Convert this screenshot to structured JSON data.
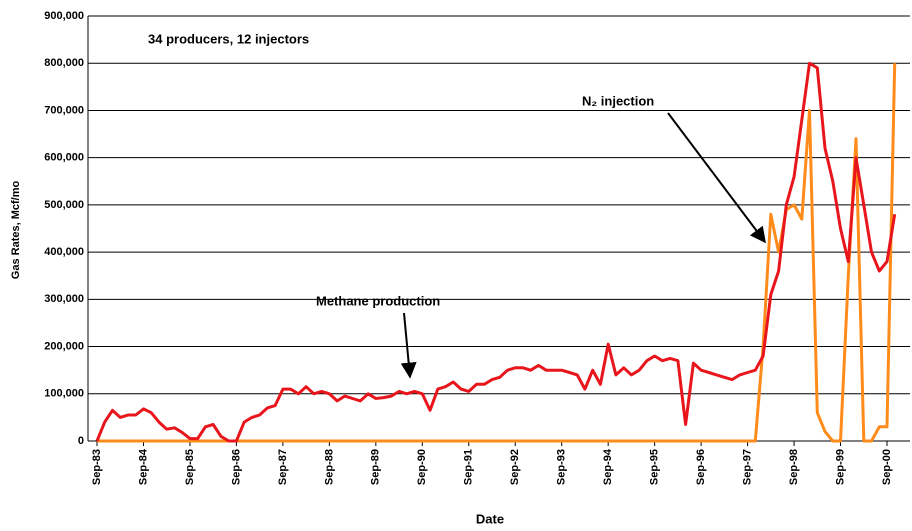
{
  "chart_data": {
    "type": "line",
    "annotations": [
      "34 producers, 12 injectors",
      "N₂ injection",
      "Methane production"
    ],
    "y_label": "Gas Rates, Mcf/mo",
    "x_label": "Date",
    "categories": [
      "Sep-83",
      null,
      null,
      null,
      null,
      null,
      "Sep-84",
      null,
      null,
      null,
      null,
      null,
      "Sep-85",
      null,
      null,
      null,
      null,
      null,
      "Sep-86",
      null,
      null,
      null,
      null,
      null,
      "Sep-87",
      null,
      null,
      null,
      null,
      null,
      "Sep-88",
      null,
      null,
      null,
      null,
      null,
      "Sep-89",
      null,
      null,
      null,
      null,
      null,
      "Sep-90",
      null,
      null,
      null,
      null,
      null,
      "Sep-91",
      null,
      null,
      null,
      null,
      null,
      "Sep-92",
      null,
      null,
      null,
      null,
      null,
      "Sep-93",
      null,
      null,
      null,
      null,
      null,
      "Sep-94",
      null,
      null,
      null,
      null,
      null,
      "Sep-95",
      null,
      null,
      null,
      null,
      null,
      "Sep-96",
      null,
      null,
      null,
      null,
      null,
      "Sep-97",
      null,
      null,
      null,
      null,
      null,
      "Sep-98",
      null,
      null,
      null,
      null,
      null,
      "Sep-99",
      null,
      null,
      null,
      null,
      null,
      "Sep-00",
      null
    ],
    "series": [
      {
        "name": "Methane production",
        "color": "#e8161c",
        "values": [
          0,
          40000,
          65000,
          50000,
          55000,
          55000,
          68000,
          60000,
          40000,
          25000,
          28000,
          18000,
          5000,
          5000,
          30000,
          35000,
          10000,
          0,
          0,
          40000,
          50000,
          55000,
          70000,
          75000,
          110000,
          110000,
          100000,
          115000,
          100000,
          105000,
          100000,
          85000,
          95000,
          90000,
          85000,
          100000,
          90000,
          92000,
          95000,
          105000,
          100000,
          105000,
          100000,
          65000,
          110000,
          115000,
          125000,
          110000,
          105000,
          120000,
          120000,
          130000,
          135000,
          150000,
          155000,
          155000,
          150000,
          160000,
          150000,
          150000,
          150000,
          145000,
          140000,
          110000,
          150000,
          120000,
          205000,
          140000,
          155000,
          140000,
          150000,
          170000,
          180000,
          170000,
          175000,
          170000,
          35000,
          165000,
          150000,
          145000,
          140000,
          135000,
          130000,
          140000,
          145000,
          150000,
          180000,
          310000,
          360000,
          500000,
          560000,
          680000,
          800000,
          790000,
          620000,
          550000,
          450000,
          380000,
          600000,
          500000,
          400000,
          360000,
          380000,
          480000
        ]
      },
      {
        "name": "N₂ injection",
        "color": "#ff8c1a",
        "values": [
          0,
          0,
          0,
          0,
          0,
          0,
          0,
          0,
          0,
          0,
          0,
          0,
          0,
          0,
          0,
          0,
          0,
          0,
          0,
          0,
          0,
          0,
          0,
          0,
          0,
          0,
          0,
          0,
          0,
          0,
          0,
          0,
          0,
          0,
          0,
          0,
          0,
          0,
          0,
          0,
          0,
          0,
          0,
          0,
          0,
          0,
          0,
          0,
          0,
          0,
          0,
          0,
          0,
          0,
          0,
          0,
          0,
          0,
          0,
          0,
          0,
          0,
          0,
          0,
          0,
          0,
          0,
          0,
          0,
          0,
          0,
          0,
          0,
          0,
          0,
          0,
          0,
          0,
          0,
          0,
          0,
          0,
          0,
          0,
          0,
          0,
          200000,
          480000,
          400000,
          490000,
          500000,
          470000,
          700000,
          60000,
          20000,
          0,
          0,
          350000,
          640000,
          0,
          0,
          30000,
          30000,
          800000
        ]
      }
    ],
    "ylim": [
      0,
      900000
    ],
    "yticks": [
      0,
      {
        "value": 100000,
        "label": "100,000"
      },
      {
        "value": 200000,
        "label": "200,000"
      },
      {
        "value": 300000,
        "label": "300,000"
      },
      {
        "value": 400000,
        "label": "400,000"
      },
      {
        "value": 500000,
        "label": "500,000"
      },
      {
        "value": 600000,
        "label": "600,000"
      },
      {
        "value": 700000,
        "label": "700,000"
      },
      {
        "value": 800000,
        "label": "800,000"
      },
      {
        "value": 900000,
        "label": "900,000"
      }
    ],
    "grid": true
  }
}
